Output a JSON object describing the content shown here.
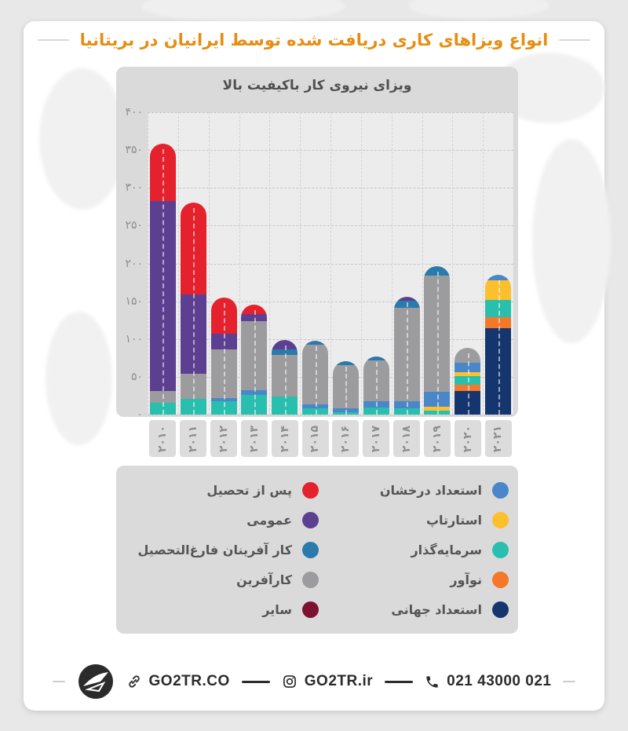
{
  "page": {
    "title": "انواع ویزاهای کاری دریافت شده توسط ایرانیان در بریتانیا",
    "title_color": "#e88d12"
  },
  "chart_data": {
    "type": "bar",
    "stacked": true,
    "title": "ویزای نیروی کار باکیفیت بالا",
    "categories": [
      "۲۰۱۰",
      "۲۰۱۱",
      "۲۰۱۲",
      "۲۰۱۳",
      "۲۰۱۴",
      "۲۰۱۵",
      "۲۰۱۶",
      "۲۰۱۷",
      "۲۰۱۸",
      "۲۰۱۹",
      "۲۰۲۰",
      "۲۰۲۱"
    ],
    "categories_latin": [
      2010,
      2011,
      2012,
      2013,
      2014,
      2015,
      2016,
      2017,
      2018,
      2019,
      2020,
      2021
    ],
    "y_ticks": [
      "۴۰۰",
      "۳۵۰",
      "۳۰۰",
      "۲۵۰",
      "۲۰۰",
      "۱۵۰",
      "۱۰۰",
      "۵۰",
      "۰"
    ],
    "ylim": [
      0,
      400
    ],
    "grid": "dashed",
    "stack_order": "bottom_to_top",
    "series": [
      {
        "name": "استعداد جهانی",
        "key": "global-talent",
        "color": "#15356e",
        "values": [
          0,
          0,
          0,
          0,
          0,
          0,
          0,
          0,
          0,
          0,
          31,
          114
        ]
      },
      {
        "name": "نوآور",
        "key": "innovator",
        "color": "#f5772a",
        "values": [
          0,
          0,
          0,
          0,
          0,
          0,
          0,
          0,
          0,
          0,
          8,
          15
        ]
      },
      {
        "name": "سرمایه‌گذار",
        "key": "investor",
        "color": "#29bfae",
        "values": [
          16,
          21,
          18,
          26,
          24,
          8,
          3,
          9,
          8,
          5,
          12,
          23
        ]
      },
      {
        "name": "استارتاپ",
        "key": "startup",
        "color": "#fcc02e",
        "values": [
          0,
          0,
          0,
          0,
          0,
          0,
          0,
          0,
          0,
          5,
          5,
          26
        ]
      },
      {
        "name": "استعداد درخشان",
        "key": "exceptional-talent",
        "color": "#4a87c8",
        "values": [
          0,
          0,
          4,
          6,
          0,
          6,
          5,
          9,
          10,
          20,
          13,
          7
        ]
      },
      {
        "name": "سایر",
        "key": "other",
        "color": "#7c122f",
        "values": [
          0,
          0,
          0,
          0,
          0,
          0,
          0,
          0,
          0,
          0,
          0,
          0
        ]
      },
      {
        "name": "کارآفرین",
        "key": "entrepreneur",
        "color": "#9c9c9e",
        "values": [
          15,
          33,
          64,
          92,
          55,
          78,
          58,
          54,
          123,
          154,
          19,
          0
        ]
      },
      {
        "name": "کار آفرینان فارغ‌التحصیل",
        "key": "graduate-entrepreneur",
        "color": "#2a7aab",
        "values": [
          0,
          0,
          0,
          0,
          7,
          6,
          5,
          5,
          10,
          12,
          0,
          0
        ]
      },
      {
        "name": "عمومی",
        "key": "general",
        "color": "#5d3f92",
        "values": [
          252,
          105,
          21,
          9,
          13,
          0,
          0,
          0,
          5,
          0,
          0,
          0
        ]
      },
      {
        "name": "پس از تحصیل",
        "key": "post-study",
        "color": "#e5212e",
        "values": [
          75,
          122,
          48,
          12,
          0,
          0,
          0,
          0,
          0,
          0,
          0,
          0
        ]
      }
    ]
  },
  "legend": {
    "right_column": [
      {
        "label": "استعداد درخشان",
        "color": "#4a87c8"
      },
      {
        "label": "استارتاپ",
        "color": "#fcc02e"
      },
      {
        "label": "سرمایه‌گذار",
        "color": "#29bfae"
      },
      {
        "label": "نوآور",
        "color": "#f5772a"
      },
      {
        "label": "استعداد جهانی",
        "color": "#15356e"
      }
    ],
    "left_column": [
      {
        "label": "پس از تحصیل",
        "color": "#e5212e"
      },
      {
        "label": "عمومی",
        "color": "#5d3f92"
      },
      {
        "label": "کار آفرینان فارغ‌التحصیل",
        "color": "#2a7aab"
      },
      {
        "label": "کارآفرین",
        "color": "#9c9c9e"
      },
      {
        "label": "سایر",
        "color": "#7c122f"
      }
    ]
  },
  "footer": {
    "website": "GO2TR.CO",
    "instagram": "GO2TR.ir",
    "phone": "021 43000 021"
  }
}
